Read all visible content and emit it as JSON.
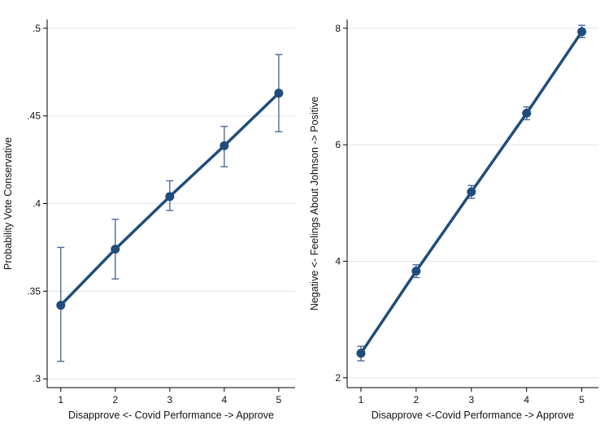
{
  "page": {
    "background": "#ffffff"
  },
  "chart_data": [
    {
      "type": "line",
      "title": "",
      "xlabel": "Disapprove <- Covid Performance -> Approve",
      "ylabel": "Probability Vote Conservative",
      "x": [
        1,
        2,
        3,
        4,
        5
      ],
      "y": [
        0.342,
        0.374,
        0.404,
        0.433,
        0.463
      ],
      "ci_low": [
        0.31,
        0.357,
        0.396,
        0.421,
        0.441
      ],
      "ci_high": [
        0.375,
        0.391,
        0.413,
        0.444,
        0.485
      ],
      "xlim": [
        0.75,
        5.3
      ],
      "ylim": [
        0.295,
        0.505
      ],
      "xticks": [
        1,
        2,
        3,
        4,
        5
      ],
      "xtick_labels": [
        "1",
        "2",
        "3",
        "4",
        "5"
      ],
      "yticks": [
        0.3,
        0.35,
        0.4,
        0.45,
        0.5
      ],
      "ytick_labels": [
        ".3",
        ".35",
        ".4",
        ".45",
        ".5"
      ],
      "grid": true,
      "legend": "none",
      "line_color": "#204d7b",
      "marker_color": "#204d7b",
      "ci_color": "#4d6b99",
      "grid_color": "#dde6ee",
      "axis_color": "#000000"
    },
    {
      "type": "line",
      "title": "",
      "xlabel": "Disapprove <-Covid Performance -> Approve",
      "ylabel": "Negative <- Feelings About Johnson -> Positive",
      "x": [
        1,
        2,
        3,
        4,
        5
      ],
      "y": [
        2.42,
        3.83,
        5.19,
        6.54,
        7.94
      ],
      "ci_low": [
        2.29,
        3.72,
        5.08,
        6.43,
        7.84
      ],
      "ci_high": [
        2.54,
        3.94,
        5.3,
        6.65,
        8.05
      ],
      "xlim": [
        0.75,
        5.3
      ],
      "ylim": [
        1.83,
        8.15
      ],
      "xticks": [
        1,
        2,
        3,
        4,
        5
      ],
      "xtick_labels": [
        "1",
        "2",
        "3",
        "4",
        "5"
      ],
      "yticks": [
        2,
        4,
        6,
        8
      ],
      "ytick_labels": [
        "2",
        "4",
        "6",
        "8"
      ],
      "grid": true,
      "legend": "none",
      "line_color": "#204d7b",
      "marker_color": "#204d7b",
      "ci_color": "#4d6b99",
      "grid_color": "#dde6ee",
      "axis_color": "#000000"
    }
  ]
}
